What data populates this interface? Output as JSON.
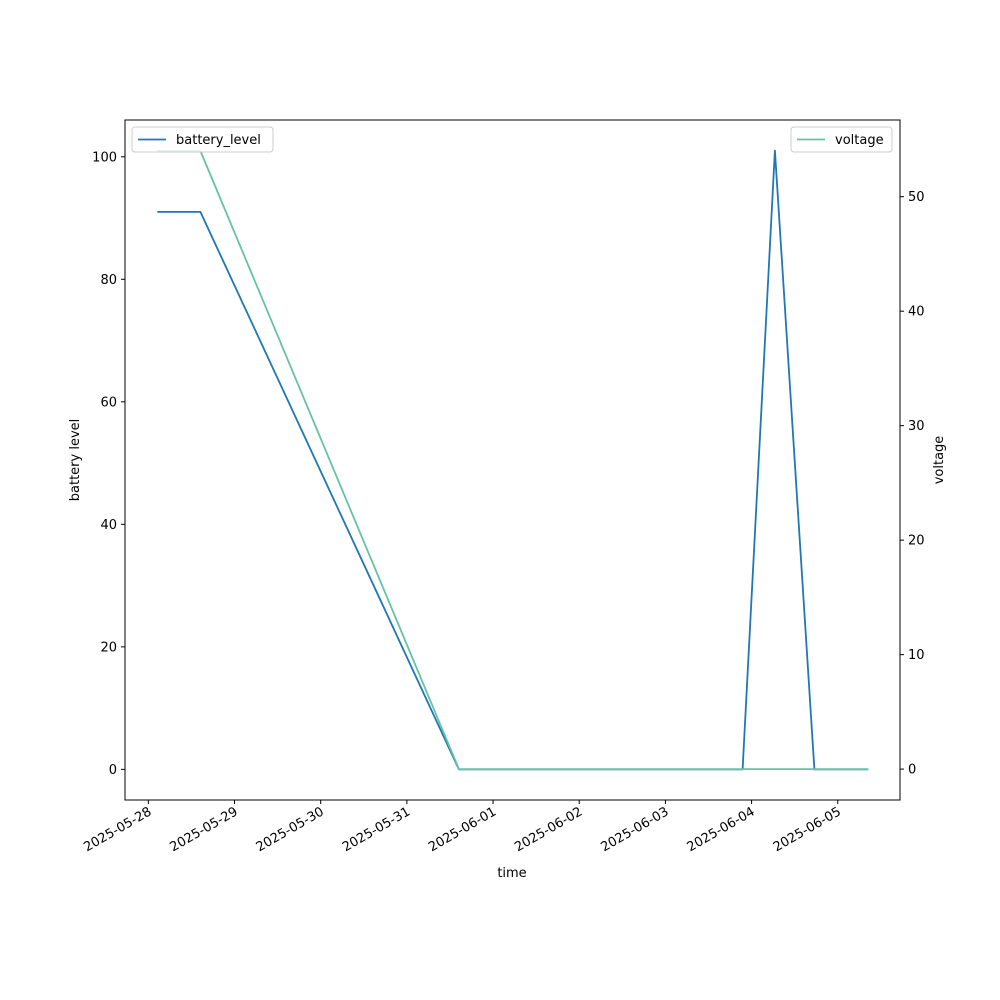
{
  "chart_data": {
    "type": "line",
    "xlabel": "time",
    "x_ticks": [
      "2025-05-28",
      "2025-05-29",
      "2025-05-30",
      "2025-05-31",
      "2025-06-01",
      "2025-06-02",
      "2025-06-03",
      "2025-06-04",
      "2025-06-05"
    ],
    "xlim": [
      "2025-05-27T17:30",
      "2025-06-05T17:20"
    ],
    "left_axis": {
      "label": "battery level",
      "ylim": [
        -5,
        106
      ],
      "ticks": [
        0,
        20,
        40,
        60,
        80,
        100
      ]
    },
    "right_axis": {
      "label": "voltage",
      "ylim": [
        -2.7,
        56.7
      ],
      "ticks": [
        0,
        10,
        20,
        30,
        40,
        50
      ]
    },
    "grid": false,
    "series": [
      {
        "name": "battery_level",
        "axis": "left",
        "color": "#1f77b4",
        "legend_position": "upper left",
        "points": [
          [
            "2025-05-28T02:30",
            91
          ],
          [
            "2025-05-28T14:30",
            91
          ],
          [
            "2025-05-31T14:30",
            0
          ],
          [
            "2025-06-03T21:30",
            0
          ],
          [
            "2025-06-04T06:30",
            101
          ],
          [
            "2025-06-04T17:30",
            0
          ],
          [
            "2025-06-05T08:30",
            0
          ]
        ]
      },
      {
        "name": "voltage",
        "axis": "right",
        "color": "#66c2a5",
        "legend_position": "upper right",
        "points": [
          [
            "2025-05-28T02:30",
            54
          ],
          [
            "2025-05-28T14:30",
            54
          ],
          [
            "2025-05-31T14:30",
            0
          ],
          [
            "2025-06-05T08:30",
            0
          ]
        ]
      }
    ]
  }
}
